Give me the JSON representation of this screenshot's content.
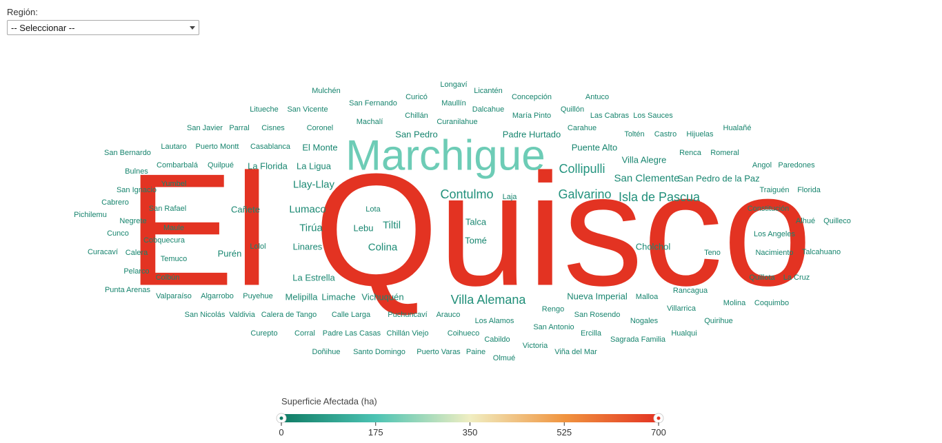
{
  "filter": {
    "label": "Región:",
    "selected": "-- Seleccionar --"
  },
  "colors": {
    "low": "#0f7b64",
    "teal": "#4cc3b3",
    "mid": "#f0eec2",
    "orange": "#f0943f",
    "high": "#e33322"
  },
  "legend": {
    "title": "Superficie Afectada (ha)",
    "min": 0,
    "max": 700,
    "ticks": [
      "0",
      "175",
      "350",
      "525",
      "700"
    ]
  },
  "chart_data": {
    "type": "wordcloud",
    "title": "",
    "value_label": "Superficie Afectada (ha)",
    "range": [
      0,
      700
    ],
    "words": [
      {
        "text": "El Quisco",
        "value": 700
      },
      {
        "text": "Marchigue",
        "value": 210
      },
      {
        "text": "Collipulli",
        "value": 60
      },
      {
        "text": "Galvarino",
        "value": 55
      },
      {
        "text": "Contulmo",
        "value": 50
      },
      {
        "text": "Isla de Pascua",
        "value": 48
      },
      {
        "text": "Villa Alemana",
        "value": 45
      },
      {
        "text": "Tiltil",
        "value": 42
      },
      {
        "text": "Colina",
        "value": 38
      },
      {
        "text": "San Clemente",
        "value": 35
      },
      {
        "text": "Lumaco",
        "value": 34
      },
      {
        "text": "Tirúa",
        "value": 34
      },
      {
        "text": "Llay-Llay",
        "value": 33
      },
      {
        "text": "Linares",
        "value": 30
      },
      {
        "text": "Cholchol",
        "value": 30
      },
      {
        "text": "La Estrella",
        "value": 28
      },
      {
        "text": "Purén",
        "value": 28
      },
      {
        "text": "Cañete",
        "value": 27
      },
      {
        "text": "La Ligua",
        "value": 27
      },
      {
        "text": "Vichuquén",
        "value": 27
      },
      {
        "text": "La Florida",
        "value": 26
      },
      {
        "text": "El Monte",
        "value": 26
      },
      {
        "text": "Padre Hurtado",
        "value": 26
      },
      {
        "text": "Puente Alto",
        "value": 25
      },
      {
        "text": "Villa Alegre",
        "value": 25
      },
      {
        "text": "San Pedro de la Paz",
        "value": 24
      },
      {
        "text": "Nueva Imperial",
        "value": 25
      },
      {
        "text": "Limache",
        "value": 25
      },
      {
        "text": "Melipilla",
        "value": 25
      },
      {
        "text": "Talca",
        "value": 25
      },
      {
        "text": "Tomé",
        "value": 24
      },
      {
        "text": "San Pedro",
        "value": 25
      },
      {
        "text": "Lebu",
        "value": 24
      },
      {
        "text": "Lolol",
        "value": 23
      },
      {
        "text": "Lota",
        "value": 22
      },
      {
        "text": "Laja",
        "value": 22
      },
      {
        "text": "Teno",
        "value": 23
      },
      {
        "text": "Malloa",
        "value": 23
      },
      {
        "text": "Rengo",
        "value": 23
      },
      {
        "text": "Rancagua",
        "value": 22
      },
      {
        "text": "Los Alamos",
        "value": 23
      },
      {
        "text": "San Rosendo",
        "value": 23
      },
      {
        "text": "San Antonio",
        "value": 22
      },
      {
        "text": "Nogales",
        "value": 22
      },
      {
        "text": "Villarrica",
        "value": 22
      },
      {
        "text": "Molina",
        "value": 22
      },
      {
        "text": "Coquimbo",
        "value": 21
      },
      {
        "text": "Quirihue",
        "value": 21
      },
      {
        "text": "Hualqui",
        "value": 21
      },
      {
        "text": "Sagrada Familia",
        "value": 21
      },
      {
        "text": "Ercilla",
        "value": 21
      },
      {
        "text": "Viña del Mar",
        "value": 20
      },
      {
        "text": "Victoria",
        "value": 21
      },
      {
        "text": "Cabildo",
        "value": 21
      },
      {
        "text": "Olmué",
        "value": 20
      },
      {
        "text": "Paine",
        "value": 21
      },
      {
        "text": "Puerto Varas",
        "value": 20
      },
      {
        "text": "Santo Domingo",
        "value": 20
      },
      {
        "text": "Doñihue",
        "value": 20
      },
      {
        "text": "Coihueco",
        "value": 21
      },
      {
        "text": "Chillán Viejo",
        "value": 21
      },
      {
        "text": "Padre Las Casas",
        "value": 21
      },
      {
        "text": "Corral",
        "value": 21
      },
      {
        "text": "Curepto",
        "value": 20
      },
      {
        "text": "Arauco",
        "value": 22
      },
      {
        "text": "Puchuncaví",
        "value": 22
      },
      {
        "text": "Calle Larga",
        "value": 22
      },
      {
        "text": "Calera de Tango",
        "value": 21
      },
      {
        "text": "Valdivia",
        "value": 21
      },
      {
        "text": "San Nicolás",
        "value": 20
      },
      {
        "text": "Puyehue",
        "value": 21
      },
      {
        "text": "Algarrobo",
        "value": 21
      },
      {
        "text": "Valparaíso",
        "value": 20
      },
      {
        "text": "Punta Arenas",
        "value": 20
      },
      {
        "text": "Colbún",
        "value": 20
      },
      {
        "text": "Pelarco",
        "value": 21
      },
      {
        "text": "Temuco",
        "value": 21
      },
      {
        "text": "Calera",
        "value": 21
      },
      {
        "text": "Curacaví",
        "value": 20
      },
      {
        "text": "Cobquecura",
        "value": 21
      },
      {
        "text": "Cunco",
        "value": 21
      },
      {
        "text": "Maule",
        "value": 21
      },
      {
        "text": "Negrete",
        "value": 21
      },
      {
        "text": "Pichilemu",
        "value": 20
      },
      {
        "text": "San Rafael",
        "value": 21
      },
      {
        "text": "Cabrero",
        "value": 21
      },
      {
        "text": "San Ignacio",
        "value": 20
      },
      {
        "text": "Yumbel",
        "value": 21
      },
      {
        "text": "Bulnes",
        "value": 21
      },
      {
        "text": "Quilpué",
        "value": 21
      },
      {
        "text": "Combarbalá",
        "value": 21
      },
      {
        "text": "San Bernardo",
        "value": 20
      },
      {
        "text": "Lautaro",
        "value": 21
      },
      {
        "text": "Puerto Montt",
        "value": 21
      },
      {
        "text": "Casablanca",
        "value": 21
      },
      {
        "text": "San Javier",
        "value": 20
      },
      {
        "text": "Parral",
        "value": 21
      },
      {
        "text": "Cisnes",
        "value": 21
      },
      {
        "text": "Coronel",
        "value": 21
      },
      {
        "text": "Litueche",
        "value": 20
      },
      {
        "text": "San Vicente",
        "value": 21
      },
      {
        "text": "Mulchén",
        "value": 20
      },
      {
        "text": "San Fernando",
        "value": 20
      },
      {
        "text": "Machalí",
        "value": 21
      },
      {
        "text": "Curicó",
        "value": 20
      },
      {
        "text": "Chillán",
        "value": 21
      },
      {
        "text": "Curanilahue",
        "value": 21
      },
      {
        "text": "Longaví",
        "value": 20
      },
      {
        "text": "Maullín",
        "value": 21
      },
      {
        "text": "Licantén",
        "value": 20
      },
      {
        "text": "Dalcahue",
        "value": 21
      },
      {
        "text": "Concepción",
        "value": 21
      },
      {
        "text": "María Pinto",
        "value": 22
      },
      {
        "text": "Antuco",
        "value": 21
      },
      {
        "text": "Quillón",
        "value": 21
      },
      {
        "text": "Las Cabras",
        "value": 21
      },
      {
        "text": "Los Sauces",
        "value": 21
      },
      {
        "text": "Carahue",
        "value": 21
      },
      {
        "text": "Toltén",
        "value": 21
      },
      {
        "text": "Castro",
        "value": 21
      },
      {
        "text": "Hijuelas",
        "value": 21
      },
      {
        "text": "Hualañé",
        "value": 21
      },
      {
        "text": "Renca",
        "value": 21
      },
      {
        "text": "Romeral",
        "value": 21
      },
      {
        "text": "Angol",
        "value": 21
      },
      {
        "text": "Paredones",
        "value": 21
      },
      {
        "text": "Traiguén",
        "value": 21
      },
      {
        "text": "Florida",
        "value": 21
      },
      {
        "text": "Constitución",
        "value": 21
      },
      {
        "text": "Alhué",
        "value": 21
      },
      {
        "text": "Quilleco",
        "value": 21
      },
      {
        "text": "Los Angeles",
        "value": 21
      },
      {
        "text": "Nacimiento",
        "value": 21
      },
      {
        "text": "Talcahuano",
        "value": 21
      },
      {
        "text": "Quillota",
        "value": 21
      },
      {
        "text": "La Cruz",
        "value": 21
      }
    ]
  }
}
